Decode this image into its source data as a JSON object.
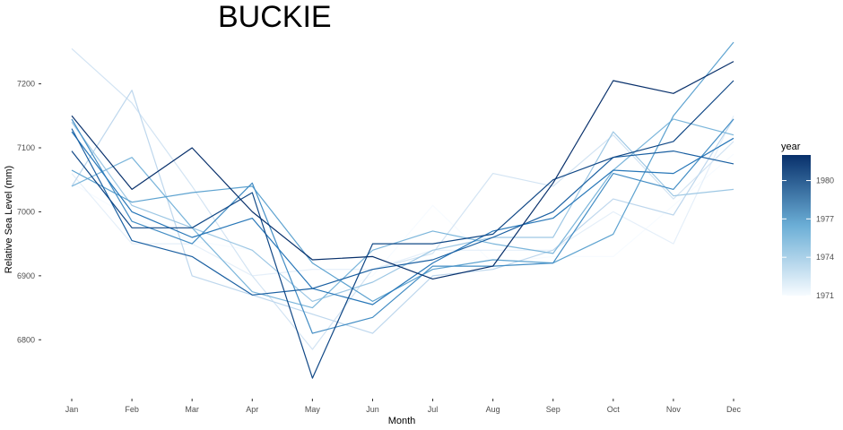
{
  "chart_data": {
    "type": "line",
    "title": "BUCKIE",
    "xlabel": "Month",
    "ylabel": "Relative Sea Level (mm)",
    "categories": [
      "Jan",
      "Feb",
      "Mar",
      "Apr",
      "May",
      "Jun",
      "Jul",
      "Aug",
      "Sep",
      "Oct",
      "Nov",
      "Dec"
    ],
    "y_ticks": [
      6800,
      6900,
      7000,
      7100,
      7200
    ],
    "y_tick_labels": [
      "6800",
      "6900",
      "7000",
      "7100",
      "7200"
    ],
    "ylim": [
      6715,
      7275
    ],
    "grid": false,
    "legend": {
      "title": "year",
      "placement": "right",
      "type": "colorbar",
      "range": [
        1971,
        1982
      ],
      "tick_values": [
        1971,
        1974,
        1977,
        1980
      ],
      "tick_labels": [
        "1971",
        "1974",
        "1977",
        "1980"
      ],
      "color_low": "#f7fbff",
      "color_high": "#08306b"
    },
    "series": [
      {
        "year": 1971,
        "values": [
          7045,
          6990,
          6955,
          6940,
          6860,
          6900,
          7010,
          6920,
          6930,
          6930,
          7010,
          7090
        ]
      },
      {
        "year": 1972,
        "values": [
          7060,
          6950,
          6950,
          6900,
          6910,
          6910,
          6940,
          6940,
          6940,
          7000,
          6950,
          7150
        ]
      },
      {
        "year": 1973,
        "values": [
          7255,
          7170,
          7040,
          6900,
          6785,
          6910,
          6935,
          7060,
          7040,
          7120,
          7020,
          7110
        ]
      },
      {
        "year": 1974,
        "values": [
          7040,
          7190,
          6900,
          6870,
          6840,
          6810,
          6900,
          6910,
          6940,
          7020,
          6995,
          7145
        ]
      },
      {
        "year": 1975,
        "values": [
          7140,
          7010,
          6975,
          6940,
          6860,
          6890,
          6940,
          6960,
          6960,
          7125,
          7025,
          7035
        ]
      },
      {
        "year": 1976,
        "values": [
          7040,
          7085,
          6975,
          6875,
          6850,
          6940,
          6970,
          6950,
          6935,
          7065,
          7145,
          7120
        ]
      },
      {
        "year": 1977,
        "values": [
          7065,
          7015,
          7030,
          7040,
          6920,
          6860,
          6910,
          6925,
          6920,
          6965,
          7150,
          7265
        ]
      },
      {
        "year": 1978,
        "values": [
          7145,
          6985,
          6950,
          7045,
          6810,
          6835,
          6915,
          6915,
          6920,
          7060,
          7035,
          7145
        ]
      },
      {
        "year": 1979,
        "values": [
          7125,
          7000,
          6960,
          6990,
          6880,
          6855,
          6920,
          6970,
          6990,
          7065,
          7060,
          7115
        ]
      },
      {
        "year": 1980,
        "values": [
          7130,
          6955,
          6930,
          6870,
          6880,
          6910,
          6925,
          6960,
          7000,
          7085,
          7095,
          7075
        ]
      },
      {
        "year": 1981,
        "values": [
          7095,
          6975,
          6975,
          7030,
          6740,
          6950,
          6950,
          6965,
          7050,
          7085,
          7110,
          7205
        ]
      },
      {
        "year": 1982,
        "values": [
          7150,
          7035,
          7100,
          7000,
          6925,
          6930,
          6895,
          6915,
          7045,
          7205,
          7185,
          7235
        ]
      }
    ]
  }
}
